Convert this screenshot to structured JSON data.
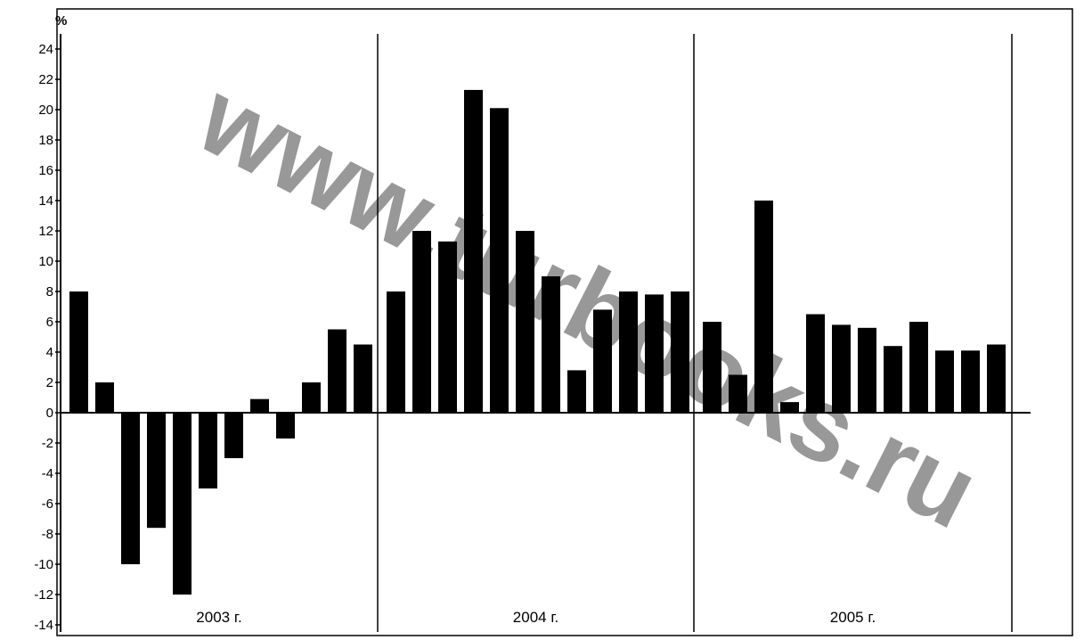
{
  "chart_data": {
    "type": "bar",
    "unit_label": "%",
    "ylim": [
      -14,
      24
    ],
    "yticks": [
      "24",
      "22",
      "20",
      "18",
      "16",
      "14",
      "12",
      "10",
      "8",
      "6",
      "4",
      "2",
      "0",
      "-2",
      "-4",
      "-6",
      "-8",
      "-10",
      "-12",
      "-14"
    ],
    "groups": [
      {
        "label": "2003 г.",
        "values": [
          8,
          2,
          -10,
          -7.6,
          -12,
          -5,
          -3,
          0.9,
          -1.7,
          2,
          5.5,
          4.5
        ]
      },
      {
        "label": "2004 г.",
        "values": [
          8,
          12,
          11.3,
          21.3,
          20.1,
          12,
          9,
          2.8,
          6.8,
          8,
          7.8,
          8
        ]
      },
      {
        "label": "2005 г.",
        "values": [
          6,
          2.5,
          14,
          0.7,
          6.5,
          5.8,
          5.6,
          4.4,
          6,
          4.1,
          4.1,
          4.5
        ]
      }
    ],
    "bar_color": "#000000",
    "grid": false
  },
  "watermark": "www.turbooks.ru"
}
